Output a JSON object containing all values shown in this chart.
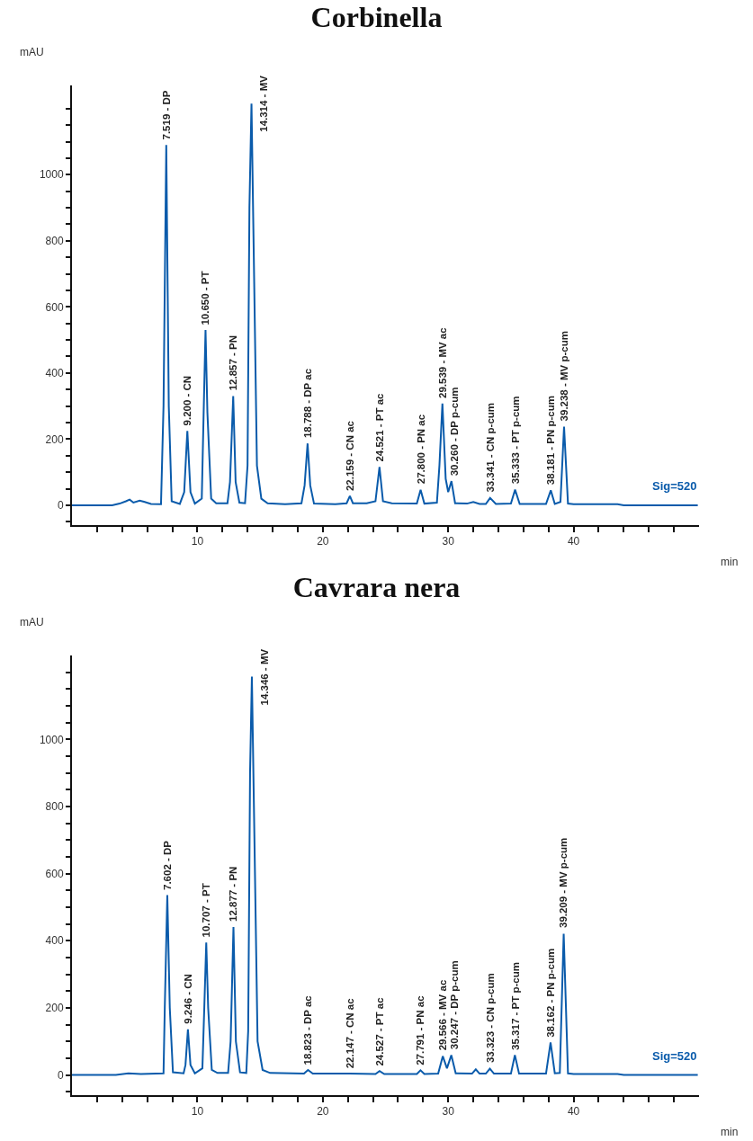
{
  "chart_data": [
    {
      "type": "line",
      "title": "Corbinella",
      "xlabel": "min",
      "ylabel": "mAU",
      "grid": false,
      "xlim": [
        0,
        50
      ],
      "ylim": [
        -60,
        1270
      ],
      "xticks": [
        {
          "value": 2,
          "label": null
        },
        {
          "value": 4,
          "label": null
        },
        {
          "value": 6,
          "label": null
        },
        {
          "value": 8,
          "label": null
        },
        10,
        {
          "value": 12,
          "label": null
        },
        {
          "value": 14,
          "label": null
        },
        {
          "value": 16,
          "label": null
        },
        {
          "value": 18,
          "label": null
        },
        20,
        {
          "value": 22,
          "label": null
        },
        {
          "value": 24,
          "label": null
        },
        {
          "value": 26,
          "label": null
        },
        {
          "value": 28,
          "label": null
        },
        30,
        {
          "value": 32,
          "label": null
        },
        {
          "value": 34,
          "label": null
        },
        {
          "value": 36,
          "label": null
        },
        {
          "value": 38,
          "label": null
        },
        40,
        {
          "value": 42,
          "label": null
        },
        {
          "value": 44,
          "label": null
        },
        {
          "value": 46,
          "label": null
        },
        {
          "value": 48,
          "label": null
        }
      ],
      "yticks": [
        {
          "value": -50,
          "label": null
        },
        0,
        {
          "value": 50,
          "label": null
        },
        {
          "value": 100,
          "label": null
        },
        {
          "value": 150,
          "label": null
        },
        200,
        {
          "value": 250,
          "label": null
        },
        {
          "value": 300,
          "label": null
        },
        {
          "value": 350,
          "label": null
        },
        400,
        {
          "value": 450,
          "label": null
        },
        {
          "value": 500,
          "label": null
        },
        {
          "value": 550,
          "label": null
        },
        600,
        {
          "value": 650,
          "label": null
        },
        {
          "value": 700,
          "label": null
        },
        {
          "value": 750,
          "label": null
        },
        800,
        {
          "value": 850,
          "label": null
        },
        {
          "value": 900,
          "label": null
        },
        {
          "value": 950,
          "label": null
        },
        1000,
        {
          "value": 1050,
          "label": null
        },
        {
          "value": 1100,
          "label": null
        },
        {
          "value": 1150,
          "label": null
        },
        {
          "value": 1200,
          "label": null
        }
      ],
      "x": [
        0,
        3.2,
        3.8,
        4.3,
        4.6,
        4.9,
        5.4,
        5.8,
        6.3,
        7.1,
        7.3,
        7.519,
        7.72,
        7.95,
        8.6,
        8.95,
        9.2,
        9.45,
        9.8,
        10.35,
        10.5,
        10.65,
        10.8,
        11.1,
        11.5,
        12.4,
        12.6,
        12.857,
        13.05,
        13.35,
        13.8,
        14.0,
        14.15,
        14.314,
        14.5,
        14.75,
        15.1,
        15.6,
        17,
        18.3,
        18.55,
        18.788,
        19.0,
        19.3,
        21,
        21.9,
        22.159,
        22.4,
        23.5,
        24.2,
        24.521,
        24.8,
        25.5,
        27.5,
        27.8,
        28.1,
        29.1,
        29.3,
        29.539,
        29.8,
        30.0,
        30.26,
        30.55,
        31.5,
        32.0,
        32.5,
        33.0,
        33.341,
        33.8,
        35.0,
        35.333,
        35.7,
        37.8,
        38.181,
        38.5,
        38.95,
        39.238,
        39.55,
        40,
        43.5,
        44,
        49.9
      ],
      "series": [
        {
          "color": "#0a5bab",
          "values": [
            0,
            0,
            5,
            12,
            17,
            8,
            14,
            10,
            4,
            3,
            300,
            1090,
            300,
            12,
            4,
            40,
            225,
            40,
            5,
            20,
            280,
            530,
            280,
            20,
            6,
            6,
            70,
            330,
            70,
            8,
            6,
            120,
            900,
            1215,
            750,
            120,
            20,
            6,
            3,
            6,
            60,
            187,
            60,
            5,
            3,
            6,
            28,
            6,
            6,
            12,
            116,
            12,
            6,
            5,
            47,
            5,
            8,
            120,
            308,
            80,
            40,
            73,
            6,
            5,
            10,
            4,
            4,
            22,
            4,
            5,
            47,
            4,
            4,
            45,
            4,
            10,
            238,
            5,
            3,
            3,
            0,
            0
          ]
        }
      ],
      "annotations": [
        {
          "text": "7.519 - DP",
          "x": 7.519,
          "y": 1090
        },
        {
          "text": "9.200 - CN",
          "x": 9.2,
          "y": 225
        },
        {
          "text": "10.650 - PT",
          "x": 10.65,
          "y": 530
        },
        {
          "text": "12.857 - PN",
          "x": 12.857,
          "y": 330
        },
        {
          "text": "14.314 - MV",
          "x": 14.314,
          "y": 1215
        },
        {
          "text": "18.788 - DP ac",
          "x": 18.788,
          "y": 187
        },
        {
          "text": "22.159 - CN ac",
          "x": 22.159,
          "y": 28
        },
        {
          "text": "24.521 - PT ac",
          "x": 24.521,
          "y": 116
        },
        {
          "text": "27.800 - PN ac",
          "x": 27.8,
          "y": 47
        },
        {
          "text": "29.539 - MV ac",
          "x": 29.539,
          "y": 308
        },
        {
          "text": "30.260 - DP p-cum",
          "x": 30.26,
          "y": 73
        },
        {
          "text": "33.341 - CN p-cum",
          "x": 33.341,
          "y": 22
        },
        {
          "text": "35.333 - PT p-cum",
          "x": 35.333,
          "y": 47
        },
        {
          "text": "38.181 - PN p-cum",
          "x": 38.181,
          "y": 45
        },
        {
          "text": "39.238 - MV p-cum",
          "x": 39.238,
          "y": 238
        },
        "Sig=520"
      ]
    },
    {
      "type": "line",
      "title": "Cavrara nera",
      "xlabel": "min",
      "ylabel": "mAU",
      "grid": false,
      "xlim": [
        0,
        50
      ],
      "ylim": [
        -60,
        1250
      ],
      "xticks": [
        {
          "value": 2,
          "label": null
        },
        {
          "value": 4,
          "label": null
        },
        {
          "value": 6,
          "label": null
        },
        {
          "value": 8,
          "label": null
        },
        10,
        {
          "value": 12,
          "label": null
        },
        {
          "value": 14,
          "label": null
        },
        {
          "value": 16,
          "label": null
        },
        {
          "value": 18,
          "label": null
        },
        20,
        {
          "value": 22,
          "label": null
        },
        {
          "value": 24,
          "label": null
        },
        {
          "value": 26,
          "label": null
        },
        {
          "value": 28,
          "label": null
        },
        30,
        {
          "value": 32,
          "label": null
        },
        {
          "value": 34,
          "label": null
        },
        {
          "value": 36,
          "label": null
        },
        {
          "value": 38,
          "label": null
        },
        40,
        {
          "value": 42,
          "label": null
        },
        {
          "value": 44,
          "label": null
        },
        {
          "value": 46,
          "label": null
        },
        {
          "value": 48,
          "label": null
        }
      ],
      "yticks": [
        {
          "value": -50,
          "label": null
        },
        0,
        {
          "value": 50,
          "label": null
        },
        {
          "value": 100,
          "label": null
        },
        {
          "value": 150,
          "label": null
        },
        200,
        {
          "value": 250,
          "label": null
        },
        {
          "value": 300,
          "label": null
        },
        {
          "value": 350,
          "label": null
        },
        400,
        {
          "value": 450,
          "label": null
        },
        {
          "value": 500,
          "label": null
        },
        {
          "value": 550,
          "label": null
        },
        600,
        {
          "value": 650,
          "label": null
        },
        {
          "value": 700,
          "label": null
        },
        {
          "value": 750,
          "label": null
        },
        800,
        {
          "value": 850,
          "label": null
        },
        {
          "value": 900,
          "label": null
        },
        {
          "value": 950,
          "label": null
        },
        1000,
        {
          "value": 1050,
          "label": null
        },
        {
          "value": 1100,
          "label": null
        },
        {
          "value": 1150,
          "label": null
        },
        {
          "value": 1200,
          "label": null
        }
      ],
      "x": [
        0,
        3.5,
        4.5,
        5.5,
        7.3,
        7.4,
        7.602,
        7.8,
        8.05,
        8.9,
        9.05,
        9.246,
        9.45,
        9.8,
        10.4,
        10.55,
        10.707,
        10.86,
        11.15,
        11.6,
        12.45,
        12.65,
        12.877,
        13.07,
        13.4,
        13.9,
        14.05,
        14.2,
        14.346,
        14.55,
        14.8,
        15.2,
        15.8,
        18.5,
        18.823,
        19.2,
        22.147,
        24.2,
        24.527,
        24.9,
        27.5,
        27.791,
        28.1,
        29.2,
        29.566,
        29.9,
        30.247,
        30.6,
        31.9,
        32.2,
        32.5,
        33.0,
        33.323,
        33.65,
        35.0,
        35.317,
        35.65,
        37.8,
        38.162,
        38.5,
        38.9,
        39.209,
        39.55,
        40,
        43.5,
        44,
        49.9
      ],
      "series": [
        {
          "color": "#0a5bab",
          "values": [
            0,
            0,
            5,
            3,
            5,
            200,
            536,
            200,
            8,
            5,
            30,
            136,
            30,
            5,
            20,
            200,
            395,
            200,
            15,
            6,
            6,
            100,
            441,
            100,
            8,
            6,
            130,
            900,
            1187,
            700,
            100,
            15,
            6,
            4,
            15,
            4,
            4,
            3,
            12,
            3,
            3,
            14,
            3,
            4,
            56,
            20,
            59,
            5,
            4,
            17,
            4,
            4,
            19,
            4,
            4,
            59,
            4,
            4,
            97,
            5,
            6,
            421,
            5,
            3,
            3,
            0,
            0
          ]
        }
      ],
      "annotations": [
        {
          "text": "7.602 - DP",
          "x": 7.602,
          "y": 536
        },
        {
          "text": "9.246 - CN",
          "x": 9.246,
          "y": 136
        },
        {
          "text": "10.707 - PT",
          "x": 10.707,
          "y": 395
        },
        {
          "text": "12.877 - PN",
          "x": 12.877,
          "y": 441
        },
        {
          "text": "14.346 - MV",
          "x": 14.346,
          "y": 1187
        },
        {
          "text": "18.823 - DP ac",
          "x": 18.823,
          "y": 15
        },
        {
          "text": "22.147 - CN ac",
          "x": 22.147,
          "y": 4
        },
        {
          "text": "24.527 - PT ac",
          "x": 24.527,
          "y": 12
        },
        {
          "text": "27.791 - PN ac",
          "x": 27.791,
          "y": 14
        },
        {
          "text": "29.566 - MV ac",
          "x": 29.566,
          "y": 56
        },
        {
          "text": "30.247 - DP p-cum",
          "x": 30.247,
          "y": 59
        },
        {
          "text": "33.323 - CN p-cum",
          "x": 33.323,
          "y": 19
        },
        {
          "text": "35.317 - PT p-cum",
          "x": 35.317,
          "y": 59
        },
        {
          "text": "38.162 - PN p-cum",
          "x": 38.162,
          "y": 97
        },
        {
          "text": "39.209 - MV p-cum",
          "x": 39.209,
          "y": 421
        },
        "Sig=520"
      ]
    }
  ]
}
